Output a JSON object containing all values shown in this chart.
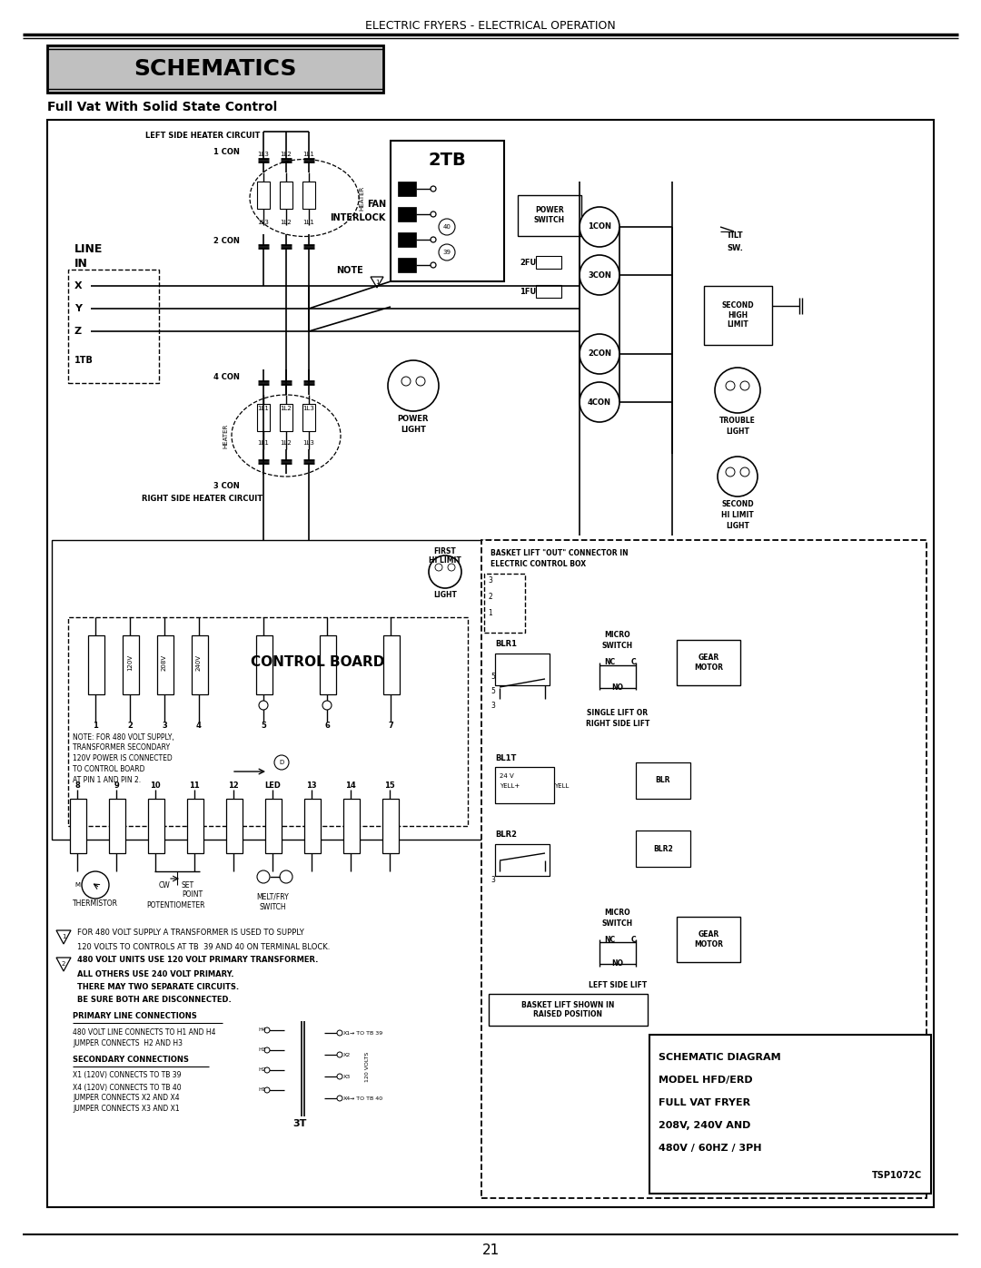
{
  "page_width": 10.8,
  "page_height": 13.97,
  "dpi": 100,
  "bg_color": "#ffffff",
  "header_text": "ELECTRIC FRYERS - ELECTRICAL OPERATION",
  "section_title": "SCHEMATICS",
  "section_title_bg": "#c0c0c0",
  "subsection_title": "Full Vat With Solid State Control",
  "footer_page": "21",
  "schematic_code": "TSP1072C"
}
